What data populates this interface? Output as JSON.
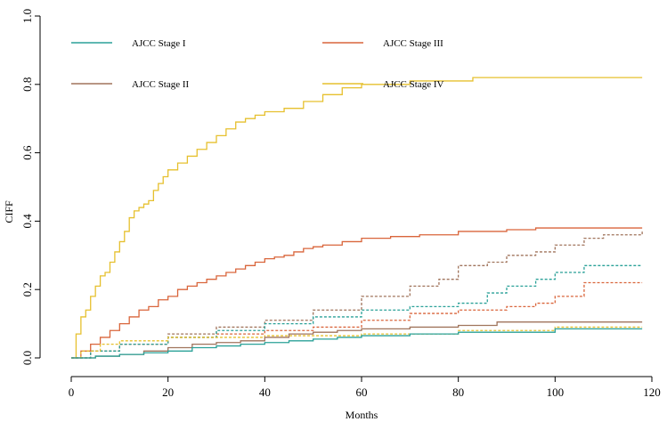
{
  "chart_data": {
    "type": "line",
    "title": "",
    "xlabel": "Months",
    "ylabel": "CIFF",
    "xlim": [
      0,
      120
    ],
    "ylim": [
      0,
      1.0
    ],
    "xticks": [
      0,
      20,
      40,
      60,
      80,
      100,
      120
    ],
    "xtick_labels": [
      "0",
      "20",
      "40",
      "60",
      "80",
      "100",
      "120"
    ],
    "yticks": [
      0,
      0.2,
      0.4,
      0.6,
      0.8,
      1.0
    ],
    "ytick_labels": [
      "0.0",
      "0.2",
      "0.4",
      "0.6",
      "0.8",
      "1.0"
    ],
    "legend": [
      {
        "label": "AJCC Stage I",
        "color": "#2aa198"
      },
      {
        "label": "AJCC Stage III",
        "color": "#d9653b"
      },
      {
        "label": "AJCC Stage II",
        "color": "#a0745c"
      },
      {
        "label": "AJCC Stage IV",
        "color": "#e6c02e"
      }
    ],
    "series": [
      {
        "name": "AJCC Stage IV",
        "color": "#e6c02e",
        "dash": "solid",
        "x": [
          0,
          1,
          2,
          3,
          4,
          5,
          6,
          7,
          8,
          9,
          10,
          11,
          12,
          13,
          14,
          15,
          16,
          17,
          18,
          19,
          20,
          22,
          24,
          26,
          28,
          30,
          32,
          34,
          36,
          38,
          40,
          44,
          48,
          52,
          56,
          60,
          70,
          83,
          118
        ],
        "y": [
          0,
          0.07,
          0.12,
          0.14,
          0.18,
          0.21,
          0.24,
          0.25,
          0.28,
          0.31,
          0.34,
          0.37,
          0.41,
          0.43,
          0.44,
          0.45,
          0.46,
          0.49,
          0.51,
          0.53,
          0.55,
          0.57,
          0.59,
          0.61,
          0.63,
          0.65,
          0.67,
          0.69,
          0.7,
          0.71,
          0.72,
          0.73,
          0.75,
          0.77,
          0.79,
          0.8,
          0.81,
          0.82,
          0.82
        ]
      },
      {
        "name": "AJCC Stage III",
        "color": "#d9653b",
        "dash": "solid",
        "x": [
          0,
          2,
          4,
          6,
          8,
          10,
          12,
          14,
          16,
          18,
          20,
          22,
          24,
          26,
          28,
          30,
          32,
          34,
          36,
          38,
          40,
          42,
          44,
          46,
          48,
          50,
          52,
          56,
          60,
          66,
          72,
          80,
          90,
          96,
          118
        ],
        "y": [
          0,
          0.02,
          0.04,
          0.06,
          0.08,
          0.1,
          0.12,
          0.14,
          0.15,
          0.17,
          0.18,
          0.2,
          0.21,
          0.22,
          0.23,
          0.24,
          0.25,
          0.26,
          0.27,
          0.28,
          0.29,
          0.295,
          0.3,
          0.31,
          0.32,
          0.325,
          0.33,
          0.34,
          0.35,
          0.355,
          0.36,
          0.37,
          0.375,
          0.38,
          0.38
        ]
      },
      {
        "name": "AJCC Stage III (alt)",
        "color": "#d9653b",
        "dash": "dashed",
        "x": [
          0,
          4,
          10,
          20,
          30,
          40,
          50,
          60,
          70,
          80,
          90,
          96,
          100,
          106,
          118
        ],
        "y": [
          0,
          0.02,
          0.04,
          0.06,
          0.07,
          0.08,
          0.09,
          0.11,
          0.13,
          0.14,
          0.15,
          0.16,
          0.18,
          0.22,
          0.22
        ]
      },
      {
        "name": "AJCC Stage II (alt)",
        "color": "#a0745c",
        "dash": "dashed",
        "x": [
          0,
          4,
          10,
          20,
          30,
          40,
          50,
          60,
          70,
          76,
          80,
          86,
          90,
          96,
          100,
          106,
          110,
          118
        ],
        "y": [
          0,
          0.02,
          0.04,
          0.07,
          0.09,
          0.11,
          0.14,
          0.18,
          0.21,
          0.23,
          0.27,
          0.28,
          0.3,
          0.31,
          0.33,
          0.35,
          0.36,
          0.37
        ]
      },
      {
        "name": "AJCC Stage I (alt)",
        "color": "#2aa198",
        "dash": "dashed",
        "x": [
          0,
          4,
          10,
          20,
          30,
          40,
          50,
          60,
          70,
          80,
          86,
          90,
          96,
          100,
          106,
          118
        ],
        "y": [
          0,
          0.02,
          0.04,
          0.06,
          0.08,
          0.1,
          0.12,
          0.14,
          0.15,
          0.16,
          0.19,
          0.21,
          0.23,
          0.25,
          0.27,
          0.27
        ]
      },
      {
        "name": "AJCC Stage IV (alt)",
        "color": "#e6c02e",
        "dash": "dashed",
        "x": [
          0,
          2,
          6,
          10,
          20,
          30,
          40,
          60,
          80,
          100,
          118
        ],
        "y": [
          0,
          0.02,
          0.04,
          0.05,
          0.06,
          0.06,
          0.065,
          0.07,
          0.08,
          0.09,
          0.09
        ]
      },
      {
        "name": "AJCC Stage II",
        "color": "#a0745c",
        "dash": "solid",
        "x": [
          0,
          5,
          10,
          15,
          20,
          25,
          30,
          35,
          40,
          45,
          50,
          55,
          60,
          70,
          80,
          88,
          118
        ],
        "y": [
          0,
          0.005,
          0.01,
          0.02,
          0.03,
          0.04,
          0.045,
          0.05,
          0.06,
          0.07,
          0.075,
          0.08,
          0.085,
          0.09,
          0.095,
          0.105,
          0.105
        ]
      },
      {
        "name": "AJCC Stage I",
        "color": "#2aa198",
        "dash": "solid",
        "x": [
          0,
          5,
          10,
          15,
          20,
          25,
          30,
          35,
          40,
          45,
          50,
          55,
          60,
          70,
          80,
          100,
          118
        ],
        "y": [
          0,
          0.005,
          0.01,
          0.015,
          0.02,
          0.03,
          0.035,
          0.04,
          0.045,
          0.05,
          0.055,
          0.06,
          0.065,
          0.07,
          0.075,
          0.085,
          0.085
        ]
      }
    ]
  }
}
